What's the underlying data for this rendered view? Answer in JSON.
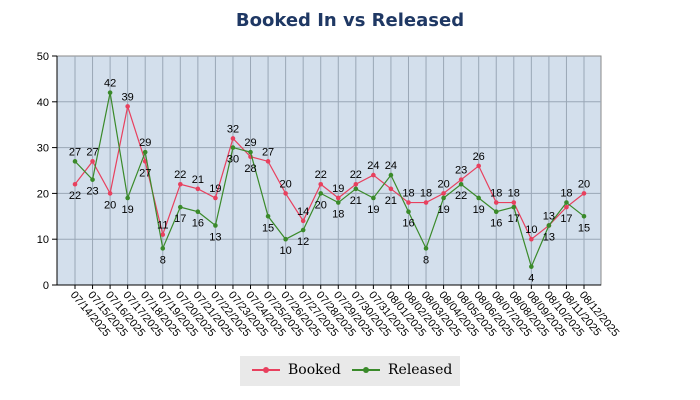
{
  "chart_data": {
    "type": "line",
    "title": "Booked In vs Released",
    "xlabel": "",
    "ylabel": "",
    "ylim": [
      0,
      50
    ],
    "yticks": [
      "0",
      "10",
      "20",
      "30",
      "40",
      "50"
    ],
    "grid": true,
    "legend": "bottom",
    "categories": [
      "07/14/2025",
      "07/15/2025",
      "07/16/2025",
      "07/17/2025",
      "07/18/2025",
      "07/19/2025",
      "07/20/2025",
      "07/21/2025",
      "07/22/2025",
      "07/23/2025",
      "07/24/2025",
      "07/25/2025",
      "07/26/2025",
      "07/27/2025",
      "07/28/2025",
      "07/29/2025",
      "07/30/2025",
      "07/31/2025",
      "08/01/2025",
      "08/02/2025",
      "08/03/2025",
      "08/04/2025",
      "08/05/2025",
      "08/06/2025",
      "08/07/2025",
      "08/08/2025",
      "08/09/2025",
      "08/10/2025",
      "08/11/2025",
      "08/12/2025"
    ],
    "series": [
      {
        "name": "Booked",
        "color": "#e8405e",
        "values": [
          22,
          27,
          20,
          39,
          27,
          11,
          22,
          21,
          19,
          32,
          28,
          27,
          20,
          14,
          22,
          19,
          22,
          24,
          21,
          18,
          18,
          20,
          23,
          26,
          18,
          18,
          10,
          13,
          17,
          20
        ]
      },
      {
        "name": "Released",
        "color": "#3a8a2a",
        "values": [
          27,
          23,
          42,
          19,
          29,
          8,
          17,
          16,
          13,
          30,
          29,
          15,
          10,
          12,
          20,
          18,
          21,
          19,
          24,
          16,
          8,
          19,
          22,
          19,
          16,
          17,
          4,
          13,
          18,
          15
        ]
      }
    ]
  }
}
